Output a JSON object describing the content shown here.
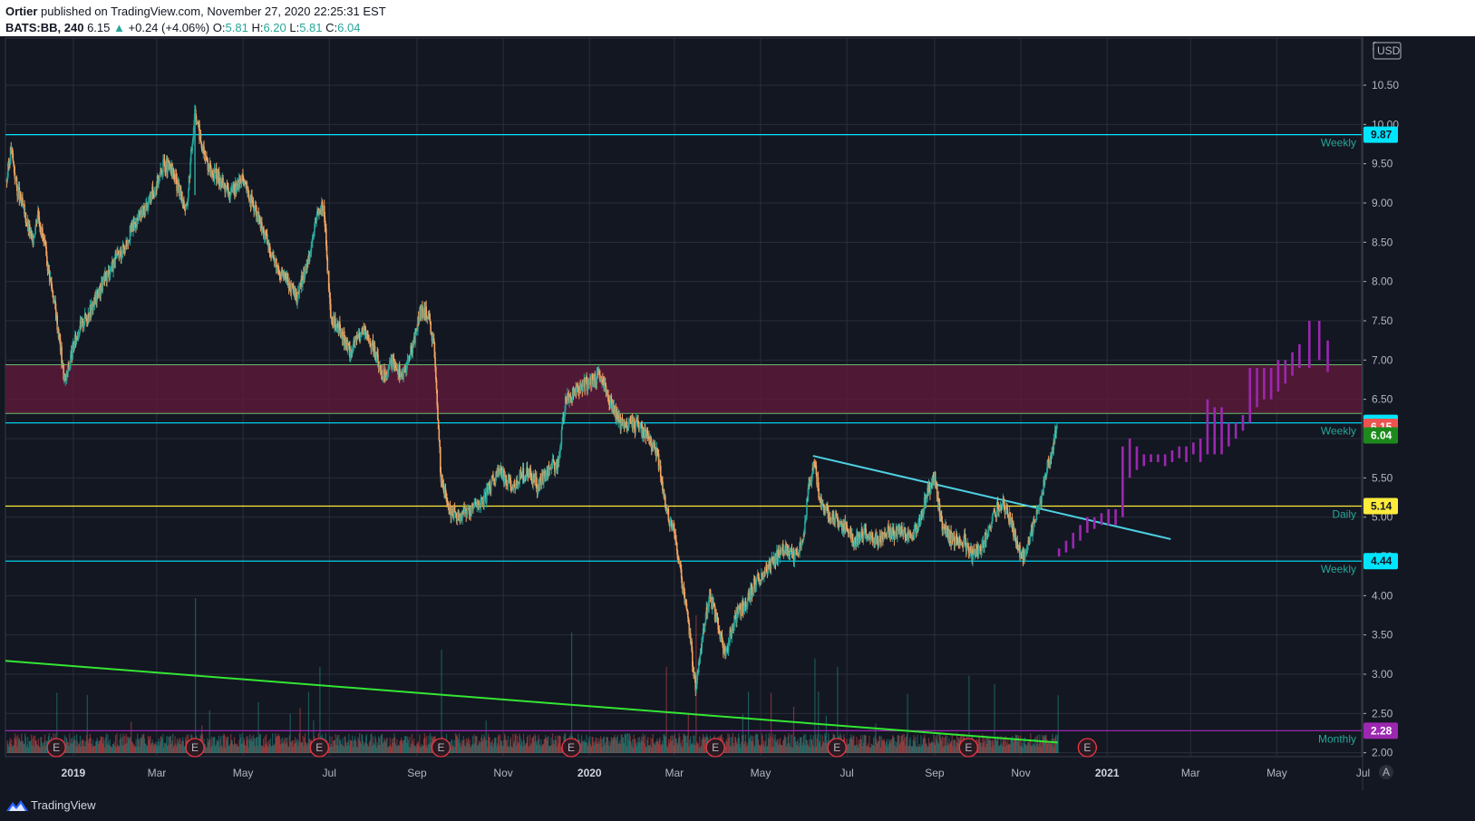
{
  "header": {
    "author": "Ortier",
    "published_text": " published on TradingView.com, November 27, 2020 22:25:31 EST",
    "symbol": "BATS:BB, 240",
    "last": "6.15",
    "change_arrow": "▲",
    "change": "+0.24 (+4.06%)",
    "o_label": "O:",
    "o_value": "5.81",
    "h_label": "H:",
    "h_value": "6.20",
    "l_label": "L:",
    "l_value": "5.81",
    "c_label": "C:",
    "c_value": "6.04"
  },
  "footer": {
    "brand": "TradingView"
  },
  "axis": {
    "currency": "USD",
    "top_partial": "1",
    "scale_icon": "A"
  },
  "chart_data": {
    "type": "candlestick",
    "y_range": [
      1.95,
      11.1
    ],
    "x_range": [
      "2018-11-14",
      "2021-06-30"
    ],
    "y_ticks": [
      2.0,
      2.5,
      3.0,
      3.5,
      4.0,
      4.5,
      5.0,
      5.5,
      6.0,
      6.5,
      7.0,
      7.5,
      8.0,
      8.5,
      9.0,
      9.5,
      10.0,
      10.5
    ],
    "y_tick_labels": [
      "2.00",
      "2.50",
      "3.00",
      "3.50",
      "4.00",
      "4.50",
      "5.00",
      "5.50",
      "6.00",
      "6.50",
      "7.00",
      "7.50",
      "8.00",
      "8.50",
      "9.00",
      "9.50",
      "10.00",
      "10.50"
    ],
    "x_ticks": [
      {
        "label": "2019",
        "date": "2019-01-01",
        "bold": true
      },
      {
        "label": "Mar",
        "date": "2019-03-01"
      },
      {
        "label": "May",
        "date": "2019-05-01"
      },
      {
        "label": "Jul",
        "date": "2019-07-01"
      },
      {
        "label": "Sep",
        "date": "2019-09-01"
      },
      {
        "label": "Nov",
        "date": "2019-11-01"
      },
      {
        "label": "2020",
        "date": "2020-01-01",
        "bold": true
      },
      {
        "label": "Mar",
        "date": "2020-03-01"
      },
      {
        "label": "May",
        "date": "2020-05-01"
      },
      {
        "label": "Jul",
        "date": "2020-07-01"
      },
      {
        "label": "Sep",
        "date": "2020-09-01"
      },
      {
        "label": "Nov",
        "date": "2020-11-01"
      },
      {
        "label": "2021",
        "date": "2021-01-01",
        "bold": true
      },
      {
        "label": "Mar",
        "date": "2021-03-01"
      },
      {
        "label": "May",
        "date": "2021-05-01"
      },
      {
        "label": "Jul",
        "date": "2021-07-01"
      }
    ],
    "price_path": [
      [
        "2018-11-15",
        9.3
      ],
      [
        "2018-11-18",
        9.7
      ],
      [
        "2018-11-22",
        9.2
      ],
      [
        "2018-11-27",
        8.9
      ],
      [
        "2018-12-03",
        8.5
      ],
      [
        "2018-12-07",
        8.9
      ],
      [
        "2018-12-12",
        8.4
      ],
      [
        "2018-12-18",
        7.8
      ],
      [
        "2018-12-22",
        7.3
      ],
      [
        "2018-12-26",
        6.7
      ],
      [
        "2018-12-31",
        7.1
      ],
      [
        "2019-01-05",
        7.4
      ],
      [
        "2019-01-12",
        7.6
      ],
      [
        "2019-01-20",
        7.9
      ],
      [
        "2019-01-28",
        8.2
      ],
      [
        "2019-02-05",
        8.4
      ],
      [
        "2019-02-12",
        8.7
      ],
      [
        "2019-02-20",
        8.9
      ],
      [
        "2019-02-28",
        9.2
      ],
      [
        "2019-03-06",
        9.5
      ],
      [
        "2019-03-12",
        9.4
      ],
      [
        "2019-03-18",
        9.1
      ],
      [
        "2019-03-22",
        8.9
      ],
      [
        "2019-03-28",
        10.2
      ],
      [
        "2019-04-02",
        9.7
      ],
      [
        "2019-04-08",
        9.4
      ],
      [
        "2019-04-15",
        9.3
      ],
      [
        "2019-04-22",
        9.1
      ],
      [
        "2019-04-30",
        9.3
      ],
      [
        "2019-05-05",
        9.1
      ],
      [
        "2019-05-12",
        8.8
      ],
      [
        "2019-05-18",
        8.5
      ],
      [
        "2019-05-25",
        8.2
      ],
      [
        "2019-06-01",
        8.0
      ],
      [
        "2019-06-08",
        7.8
      ],
      [
        "2019-06-15",
        8.2
      ],
      [
        "2019-06-22",
        8.8
      ],
      [
        "2019-06-27",
        9.0
      ],
      [
        "2019-07-02",
        7.5
      ],
      [
        "2019-07-08",
        7.4
      ],
      [
        "2019-07-16",
        7.1
      ],
      [
        "2019-07-24",
        7.4
      ],
      [
        "2019-07-31",
        7.2
      ],
      [
        "2019-08-08",
        6.8
      ],
      [
        "2019-08-15",
        7.0
      ],
      [
        "2019-08-22",
        6.8
      ],
      [
        "2019-08-29",
        7.2
      ],
      [
        "2019-09-03",
        7.6
      ],
      [
        "2019-09-08",
        7.6
      ],
      [
        "2019-09-13",
        7.2
      ],
      [
        "2019-09-18",
        5.5
      ],
      [
        "2019-09-24",
        5.1
      ],
      [
        "2019-09-30",
        5.0
      ],
      [
        "2019-10-08",
        5.1
      ],
      [
        "2019-10-18",
        5.2
      ],
      [
        "2019-10-28",
        5.6
      ],
      [
        "2019-11-08",
        5.4
      ],
      [
        "2019-11-18",
        5.6
      ],
      [
        "2019-11-25",
        5.4
      ],
      [
        "2019-12-02",
        5.6
      ],
      [
        "2019-12-10",
        5.7
      ],
      [
        "2019-12-15",
        6.5
      ],
      [
        "2019-12-22",
        6.6
      ],
      [
        "2019-12-30",
        6.7
      ],
      [
        "2020-01-08",
        6.8
      ],
      [
        "2020-01-15",
        6.5
      ],
      [
        "2020-01-22",
        6.2
      ],
      [
        "2020-01-30",
        6.2
      ],
      [
        "2020-02-08",
        6.1
      ],
      [
        "2020-02-18",
        5.8
      ],
      [
        "2020-02-24",
        5.1
      ],
      [
        "2020-03-01",
        4.8
      ],
      [
        "2020-03-06",
        4.2
      ],
      [
        "2020-03-12",
        3.5
      ],
      [
        "2020-03-16",
        2.8
      ],
      [
        "2020-03-20",
        3.4
      ],
      [
        "2020-03-26",
        4.0
      ],
      [
        "2020-04-01",
        3.6
      ],
      [
        "2020-04-06",
        3.2
      ],
      [
        "2020-04-12",
        3.7
      ],
      [
        "2020-04-20",
        3.9
      ],
      [
        "2020-04-28",
        4.2
      ],
      [
        "2020-05-08",
        4.4
      ],
      [
        "2020-05-16",
        4.6
      ],
      [
        "2020-05-24",
        4.5
      ],
      [
        "2020-05-31",
        4.7
      ],
      [
        "2020-06-04",
        5.4
      ],
      [
        "2020-06-08",
        5.7
      ],
      [
        "2020-06-12",
        5.2
      ],
      [
        "2020-06-20",
        5.0
      ],
      [
        "2020-06-28",
        4.9
      ],
      [
        "2020-07-06",
        4.7
      ],
      [
        "2020-07-14",
        4.8
      ],
      [
        "2020-07-22",
        4.7
      ],
      [
        "2020-07-30",
        4.8
      ],
      [
        "2020-08-08",
        4.8
      ],
      [
        "2020-08-18",
        4.8
      ],
      [
        "2020-08-27",
        5.3
      ],
      [
        "2020-09-01",
        5.5
      ],
      [
        "2020-09-06",
        4.9
      ],
      [
        "2020-09-14",
        4.7
      ],
      [
        "2020-09-22",
        4.7
      ],
      [
        "2020-09-28",
        4.5
      ],
      [
        "2020-10-04",
        4.6
      ],
      [
        "2020-10-12",
        5.0
      ],
      [
        "2020-10-18",
        5.2
      ],
      [
        "2020-10-24",
        5.0
      ],
      [
        "2020-10-30",
        4.6
      ],
      [
        "2020-11-03",
        4.5
      ],
      [
        "2020-11-08",
        4.8
      ],
      [
        "2020-11-14",
        5.1
      ],
      [
        "2020-11-18",
        5.5
      ],
      [
        "2020-11-22",
        5.8
      ],
      [
        "2020-11-27",
        6.15
      ]
    ],
    "levels": [
      {
        "price": 9.87,
        "label": "Weekly",
        "color": "#00e5ff",
        "tag": "9.87",
        "tag_text_color": "#131722"
      },
      {
        "price": 6.2,
        "label": "Weekly",
        "color": "#00e5ff",
        "tag": "6.20",
        "tag_text_color": "#131722"
      },
      {
        "price": 5.14,
        "label": "Daily",
        "color": "#ffeb3b",
        "tag": "5.14",
        "tag_text_color": "#131722"
      },
      {
        "price": 4.44,
        "label": "Weekly",
        "color": "#00e5ff",
        "tag": "4.44",
        "tag_text_color": "#131722"
      },
      {
        "price": 2.28,
        "label": "Monthly",
        "color": "#9c27b0",
        "tag": "2.28",
        "tag_text_color": "#ffffff"
      }
    ],
    "price_tags": [
      {
        "value": "6.15",
        "price": 6.15,
        "color": "#ef5350",
        "text_color": "#ffffff"
      },
      {
        "value": "6.04",
        "price": 6.04,
        "color": "#1b8a1b",
        "text_color": "#ffffff"
      }
    ],
    "zone": {
      "from": 6.32,
      "to": 6.94,
      "color": "#5a1a3a",
      "border": "#66bb6a"
    },
    "trendlines": [
      {
        "from": [
          "2020-06-07",
          5.78
        ],
        "to": [
          "2021-02-15",
          4.72
        ],
        "color": "#4dd0e1"
      },
      {
        "from": [
          "2018-11-14",
          3.17
        ],
        "to": [
          "2020-11-27",
          2.13
        ],
        "color": "#33e633"
      }
    ],
    "projection_bars": [
      [
        "2020-11-28",
        4.6,
        4.5
      ],
      [
        "2020-12-03",
        4.7,
        4.55
      ],
      [
        "2020-12-08",
        4.8,
        4.6
      ],
      [
        "2020-12-13",
        4.9,
        4.7
      ],
      [
        "2020-12-18",
        5.0,
        4.8
      ],
      [
        "2020-12-23",
        5.0,
        4.85
      ],
      [
        "2020-12-28",
        5.05,
        4.9
      ],
      [
        "2021-01-02",
        5.1,
        4.9
      ],
      [
        "2021-01-07",
        5.1,
        4.9
      ],
      [
        "2021-01-12",
        5.9,
        5.0
      ],
      [
        "2021-01-17",
        6.0,
        5.5
      ],
      [
        "2021-01-22",
        5.9,
        5.6
      ],
      [
        "2021-01-27",
        5.8,
        5.65
      ],
      [
        "2021-02-01",
        5.8,
        5.7
      ],
      [
        "2021-02-06",
        5.8,
        5.7
      ],
      [
        "2021-02-11",
        5.8,
        5.65
      ],
      [
        "2021-02-16",
        5.85,
        5.7
      ],
      [
        "2021-02-21",
        5.9,
        5.75
      ],
      [
        "2021-02-26",
        5.9,
        5.7
      ],
      [
        "2021-03-03",
        5.95,
        5.8
      ],
      [
        "2021-03-08",
        6.0,
        5.7
      ],
      [
        "2021-03-13",
        6.5,
        5.8
      ],
      [
        "2021-03-18",
        6.4,
        5.8
      ],
      [
        "2021-03-23",
        6.4,
        5.8
      ],
      [
        "2021-03-28",
        6.2,
        5.9
      ],
      [
        "2021-04-02",
        6.2,
        6.0
      ],
      [
        "2021-04-07",
        6.3,
        6.1
      ],
      [
        "2021-04-12",
        6.9,
        6.2
      ],
      [
        "2021-04-17",
        6.9,
        6.4
      ],
      [
        "2021-04-22",
        6.9,
        6.5
      ],
      [
        "2021-04-27",
        6.9,
        6.5
      ],
      [
        "2021-05-02",
        7.0,
        6.6
      ],
      [
        "2021-05-07",
        7.0,
        6.7
      ],
      [
        "2021-05-12",
        7.1,
        6.8
      ],
      [
        "2021-05-17",
        7.2,
        6.9
      ],
      [
        "2021-05-24",
        7.5,
        6.9
      ],
      [
        "2021-05-31",
        7.5,
        7.0
      ],
      [
        "2021-06-06",
        7.25,
        6.85
      ]
    ],
    "earnings_markers": [
      "2018-12-20",
      "2019-03-28",
      "2019-06-24",
      "2019-09-18",
      "2019-12-19",
      "2020-03-30",
      "2020-06-24",
      "2020-09-25",
      "2020-12-18"
    ],
    "earnings_label": "E",
    "volume_spikes": [
      [
        "2019-03-28",
        0.9
      ],
      [
        "2019-09-18",
        0.6
      ],
      [
        "2019-12-19",
        0.7
      ],
      [
        "2020-02-24",
        0.5
      ],
      [
        "2020-03-16",
        0.8
      ],
      [
        "2020-06-08",
        0.55
      ],
      [
        "2020-06-24",
        0.5
      ],
      [
        "2020-09-25",
        0.45
      ],
      [
        "2020-10-13",
        0.4
      ],
      [
        "2019-06-24",
        0.5
      ],
      [
        "2018-12-20",
        0.35
      ],
      [
        "2020-05-08",
        0.35
      ]
    ]
  },
  "colors": {
    "bg": "#131722",
    "grid": "#2a2e39",
    "up": "#26a69a",
    "down": "#ef5350",
    "candle_mix": "#f4a460",
    "projection": "#9c27b0",
    "earnings": "#f23645"
  }
}
